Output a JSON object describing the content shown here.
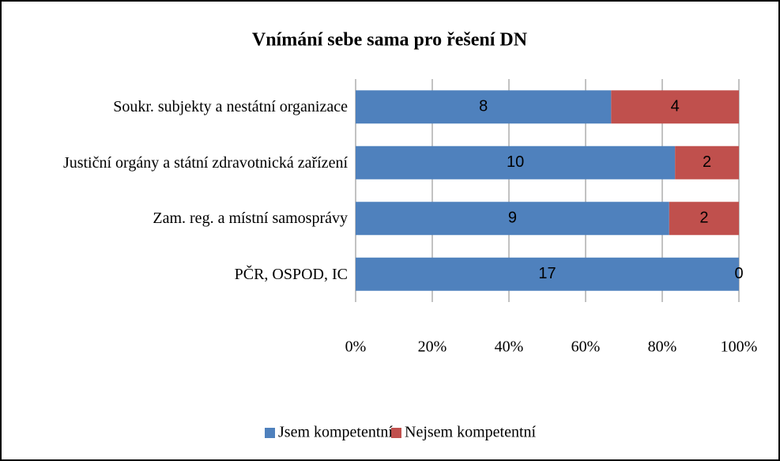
{
  "chart_data": {
    "type": "bar",
    "orientation": "horizontal",
    "stacking": "percent",
    "title": "Vnímání sebe sama pro řešení DN",
    "categories": [
      "Soukr. subjekty a nestátní organizace",
      "Justiční orgány a státní zdravotnická zařízení",
      "Zam. reg. a místní samosprávy",
      "PČR, OSPOD, IC"
    ],
    "series": [
      {
        "name": "Jsem kompetentní",
        "color": "#4f81bd",
        "values": [
          8,
          10,
          9,
          17
        ]
      },
      {
        "name": "Nejsem kompetentní",
        "color": "#c0504d",
        "values": [
          4,
          2,
          2,
          0
        ]
      }
    ],
    "xlim": [
      0,
      100
    ],
    "xticks": [
      {
        "value": 0,
        "label": "0%"
      },
      {
        "value": 20,
        "label": "20%"
      },
      {
        "value": 40,
        "label": "40%"
      },
      {
        "value": 60,
        "label": "60%"
      },
      {
        "value": 80,
        "label": "80%"
      },
      {
        "value": 100,
        "label": "100%"
      }
    ],
    "grid": true,
    "legend": "bottom"
  }
}
